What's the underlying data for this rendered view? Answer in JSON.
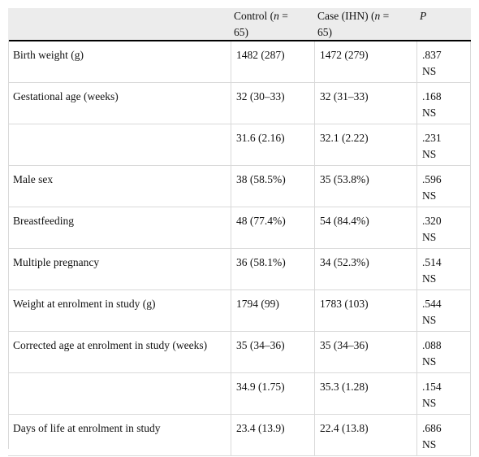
{
  "header": {
    "col1": "Control (n = 65)",
    "col2": "Case (IHN) (n = 65)",
    "col3": "P"
  },
  "rows": [
    {
      "label": "Birth weight (g)",
      "control": "1482 (287)",
      "case": "1472 (279)",
      "p": ".837",
      "sig": "NS"
    },
    {
      "label": "Gestational age (weeks)",
      "control": "32 (30–33)",
      "case": "32 (31–33)",
      "p": ".168",
      "sig": "NS"
    },
    {
      "label": "",
      "control": "31.6 (2.16)",
      "case": "32.1 (2.22)",
      "p": ".231",
      "sig": "NS"
    },
    {
      "label": "Male sex",
      "control": "38 (58.5%)",
      "case": "35 (53.8%)",
      "p": ".596",
      "sig": "NS"
    },
    {
      "label": "Breastfeeding",
      "control": "48 (77.4%)",
      "case": "54 (84.4%)",
      "p": ".320",
      "sig": "NS"
    },
    {
      "label": "Multiple pregnancy",
      "control": "36 (58.1%)",
      "case": "34 (52.3%)",
      "p": ".514",
      "sig": "NS"
    },
    {
      "label": "Weight at enrolment in study (g)",
      "control": "1794 (99)",
      "case": "1783 (103)",
      "p": ".544",
      "sig": "NS"
    },
    {
      "label": "Corrected age at enrolment in study (weeks)",
      "control": "35 (34–36)",
      "case": "35 (34–36)",
      "p": ".088",
      "sig": "NS"
    },
    {
      "label": "",
      "control": "34.9 (1.75)",
      "case": "35.3 (1.28)",
      "p": ".154",
      "sig": "NS"
    },
    {
      "label": "Days of life at enrolment in study",
      "control": "23.4 (13.9)",
      "case": "22.4 (13.8)",
      "p": ".686",
      "sig": "NS"
    }
  ]
}
